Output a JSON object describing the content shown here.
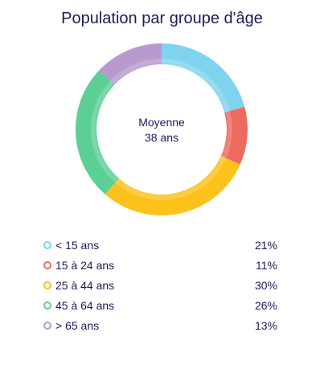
{
  "chart_data": {
    "type": "pie",
    "title": "Population par groupe d'âge",
    "center_label": {
      "line1": "Moyenne",
      "line2": "38 ans"
    },
    "categories": [
      "< 15 ans",
      "15 à 24 ans",
      "25 à 44 ans",
      "45 à 64 ans",
      "> 65 ans"
    ],
    "values": [
      21,
      11,
      30,
      26,
      13
    ],
    "value_labels": [
      "21%",
      "11%",
      "30%",
      "26%",
      "13%"
    ],
    "colors": [
      "#7fd3ee",
      "#ec6a5e",
      "#fcc21b",
      "#5ccf95",
      "#b89ad0"
    ],
    "legend_position": "bottom"
  }
}
